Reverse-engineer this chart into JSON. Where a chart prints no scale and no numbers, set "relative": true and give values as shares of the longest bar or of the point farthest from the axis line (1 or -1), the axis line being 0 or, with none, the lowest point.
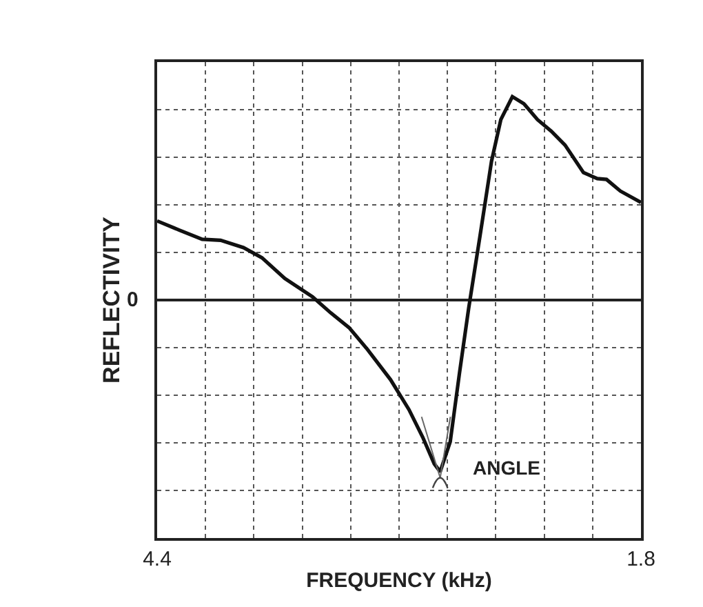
{
  "chart_data": {
    "type": "line",
    "xlabel": "FREQUENCY (kHz)",
    "ylabel": "REFLECTIVITY",
    "relative": true,
    "xlim": [
      4.4,
      1.8
    ],
    "xticks": [
      4.4,
      {
        "value": 4.14,
        "label": null
      },
      {
        "value": 3.88,
        "label": null
      },
      {
        "value": 3.62,
        "label": null
      },
      {
        "value": 3.36,
        "label": null
      },
      {
        "value": 3.1,
        "label": null
      },
      {
        "value": 2.84,
        "label": null
      },
      {
        "value": 2.58,
        "label": null
      },
      {
        "value": 2.32,
        "label": null
      },
      {
        "value": 2.06,
        "label": null
      },
      1.8
    ],
    "grid": true,
    "marker": "none",
    "line_style": "solid",
    "x": [
      4.4,
      4.281,
      4.158,
      4.059,
      3.936,
      3.837,
      3.714,
      3.565,
      3.467,
      3.368,
      3.269,
      3.146,
      3.047,
      2.973,
      2.911,
      2.879,
      2.825,
      2.775,
      2.726,
      2.664,
      2.603,
      2.553,
      2.491,
      2.43,
      2.356,
      2.282,
      2.208,
      2.109,
      2.035,
      1.985,
      1.911,
      1.8
    ],
    "series": [
      {
        "color": "#111111",
        "values": [
          0.389,
          0.344,
          0.299,
          0.294,
          0.258,
          0.208,
          0.106,
          0.016,
          -0.063,
          -0.136,
          -0.244,
          -0.391,
          -0.538,
          -0.674,
          -0.805,
          -0.844,
          -0.697,
          -0.357,
          -0.041,
          0.321,
          0.683,
          0.887,
          1.0,
          0.966,
          0.887,
          0.83,
          0.762,
          0.627,
          0.597,
          0.593,
          0.536,
          0.48
        ]
      }
    ],
    "annotations": [
      "0",
      {
        "text": "ANGLE",
        "x": 2.879,
        "y": -0.844
      }
    ]
  }
}
